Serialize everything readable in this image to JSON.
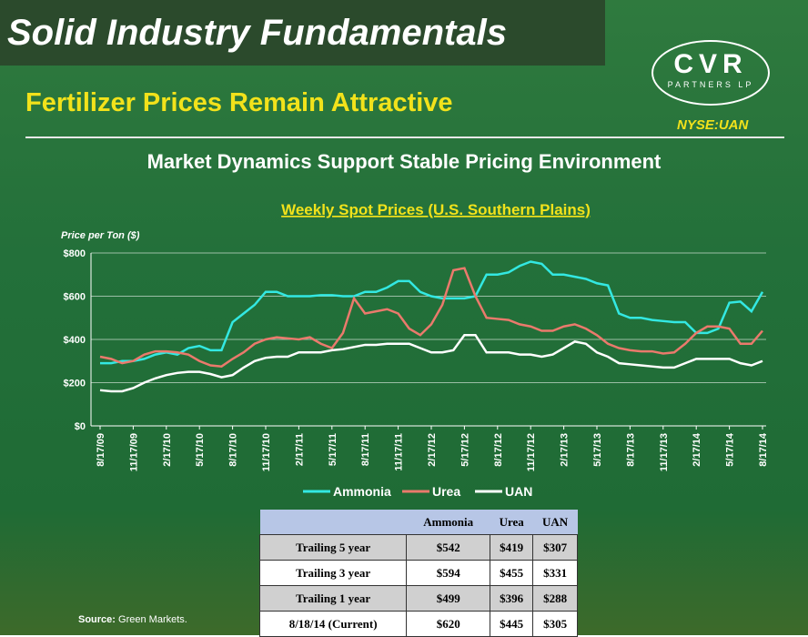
{
  "slide": {
    "banner": "Solid Industry Fundamentals",
    "logo": "CVR",
    "logo_sub": "PARTNERS LP",
    "heading": "Fertilizer Prices Remain Attractive",
    "ticker": "NYSE:UAN",
    "subtitle": "Market Dynamics Support Stable Pricing Environment",
    "source_label": "Source:",
    "source": "Green Markets."
  },
  "chart_data": {
    "type": "line",
    "title": "Weekly Spot Prices (U.S. Southern Plains)",
    "y_label": "Price per Ton ($)",
    "categories": [
      "8/17/09",
      null,
      null,
      "11/17/09",
      null,
      null,
      "2/17/10",
      null,
      null,
      "5/17/10",
      null,
      null,
      "8/17/10",
      null,
      null,
      "11/17/10",
      null,
      null,
      "2/17/11",
      null,
      null,
      "5/17/11",
      null,
      null,
      "8/17/11",
      null,
      null,
      "11/17/11",
      null,
      null,
      "2/17/12",
      null,
      null,
      "5/17/12",
      null,
      null,
      "8/17/12",
      null,
      null,
      "11/17/12",
      null,
      null,
      "2/17/13",
      null,
      null,
      "5/17/13",
      null,
      null,
      "8/17/13",
      null,
      null,
      "11/17/13",
      null,
      null,
      "2/17/14",
      null,
      null,
      "5/17/14",
      null,
      null,
      "8/17/14"
    ],
    "ylim": [
      0,
      800
    ],
    "yticks": [
      {
        "value": 0,
        "label": "$0"
      },
      {
        "value": 200,
        "label": "$200"
      },
      {
        "value": 400,
        "label": "$400"
      },
      {
        "value": 600,
        "label": "$600"
      },
      {
        "value": 800,
        "label": "$800"
      }
    ],
    "grid": true,
    "legend": "bottom",
    "series": [
      {
        "name": "Ammonia",
        "color": "#33e8e2",
        "values": [
          290,
          290,
          300,
          300,
          310,
          330,
          340,
          330,
          360,
          370,
          350,
          350,
          480,
          520,
          560,
          620,
          620,
          600,
          600,
          600,
          605,
          605,
          600,
          600,
          620,
          620,
          640,
          670,
          670,
          620,
          600,
          590,
          590,
          590,
          600,
          700,
          700,
          710,
          740,
          760,
          750,
          700,
          700,
          690,
          680,
          660,
          650,
          520,
          500,
          500,
          490,
          485,
          480,
          480,
          430,
          430,
          450,
          570,
          575,
          530,
          620
        ]
      },
      {
        "name": "Urea",
        "color": "#ea7a6c",
        "values": [
          320,
          310,
          290,
          300,
          330,
          345,
          345,
          340,
          330,
          300,
          280,
          275,
          310,
          340,
          380,
          400,
          410,
          405,
          400,
          410,
          380,
          360,
          430,
          590,
          520,
          530,
          540,
          520,
          450,
          420,
          470,
          560,
          720,
          730,
          600,
          500,
          495,
          490,
          470,
          460,
          440,
          440,
          460,
          470,
          450,
          420,
          380,
          360,
          350,
          345,
          345,
          335,
          340,
          380,
          430,
          460,
          460,
          450,
          380,
          380,
          440
        ]
      },
      {
        "name": "UAN",
        "color": "#ffffff",
        "values": [
          165,
          160,
          160,
          175,
          200,
          220,
          235,
          245,
          250,
          250,
          240,
          225,
          235,
          270,
          300,
          315,
          320,
          320,
          340,
          340,
          340,
          350,
          355,
          365,
          375,
          375,
          380,
          380,
          380,
          360,
          340,
          340,
          350,
          420,
          420,
          340,
          340,
          340,
          330,
          330,
          320,
          330,
          360,
          390,
          380,
          340,
          320,
          290,
          285,
          280,
          275,
          270,
          270,
          290,
          310,
          310,
          310,
          310,
          290,
          280,
          300
        ]
      }
    ]
  },
  "table": {
    "columns": [
      "Ammonia",
      "Urea",
      "UAN"
    ],
    "rows": [
      [
        "Trailing 5 year",
        "$542",
        "$419",
        "$307"
      ],
      [
        "Trailing 3 year",
        "$594",
        "$455",
        "$331"
      ],
      [
        "Trailing 1 year",
        "$499",
        "$396",
        "$288"
      ],
      [
        "8/18/14 (Current)",
        "$620",
        "$445",
        "$305"
      ]
    ]
  }
}
